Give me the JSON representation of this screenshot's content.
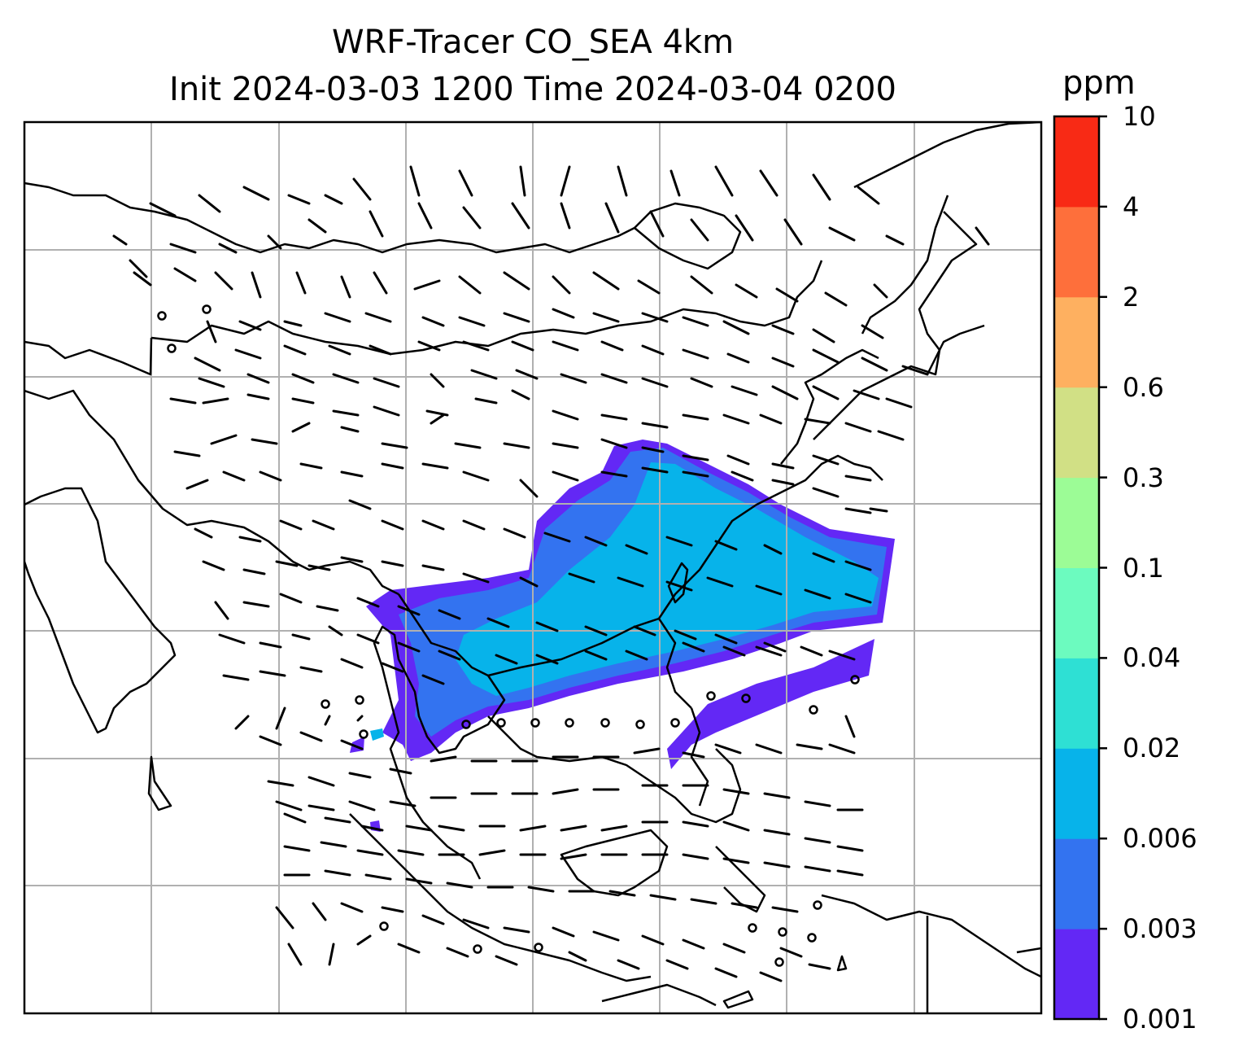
{
  "title": {
    "line1": "WRF-Tracer CO_SEA 4km",
    "line2": "Init 2024-03-03 1200 Time 2024-03-04 0200"
  },
  "colorbar": {
    "unit": "ppm",
    "levels": [
      "0.001",
      "0.003",
      "0.006",
      "0.02",
      "0.04",
      "0.1",
      "0.3",
      "0.6",
      "2",
      "4",
      "10"
    ],
    "colors": [
      "#6328f5",
      "#3373f0",
      "#07b3ea",
      "#2ee0d4",
      "#6cfbbf",
      "#9cfc96",
      "#d1e085",
      "#feb060",
      "#fe6f3b",
      "#f82a15"
    ]
  },
  "map": {
    "gridlines": true,
    "field": "CO_SEA tracer concentration",
    "overlay": "wind barbs",
    "colors": {
      "grid": "#b0b0b0",
      "coast": "#000000"
    }
  }
}
